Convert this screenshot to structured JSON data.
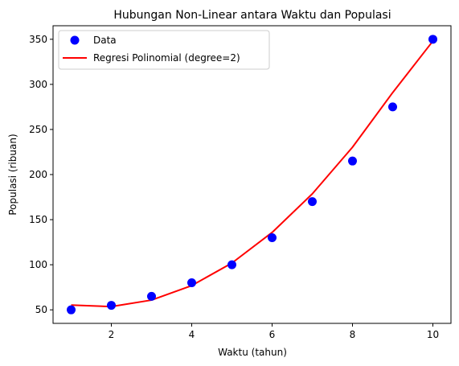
{
  "chart_data": {
    "type": "scatter",
    "title": "Hubungan Non-Linear antara Waktu dan Populasi",
    "xlabel": "Waktu (tahun)",
    "ylabel": "Populasi (ribuan)",
    "xlim": [
      0.55,
      10.45
    ],
    "ylim": [
      35,
      365
    ],
    "xticks": [
      2,
      4,
      6,
      8,
      10
    ],
    "yticks": [
      50,
      100,
      150,
      200,
      250,
      300,
      350
    ],
    "grid": false,
    "legend_position": "top-left",
    "series": [
      {
        "name": "Data",
        "kind": "scatter",
        "color": "#0000ff",
        "x": [
          1,
          2,
          3,
          4,
          5,
          6,
          7,
          8,
          9,
          10
        ],
        "y": [
          50,
          55,
          65,
          80,
          100,
          130,
          170,
          215,
          275,
          350
        ]
      },
      {
        "name": "Regresi Polinomial (degree=2)",
        "kind": "line",
        "color": "#ff0000",
        "x": [
          1,
          2,
          3,
          4,
          5,
          6,
          7,
          8,
          9,
          10
        ],
        "y": [
          55.3,
          53.6,
          60.8,
          76.9,
          101.9,
          135.8,
          178.6,
          230.3,
          290.9,
          348.0
        ]
      }
    ]
  }
}
